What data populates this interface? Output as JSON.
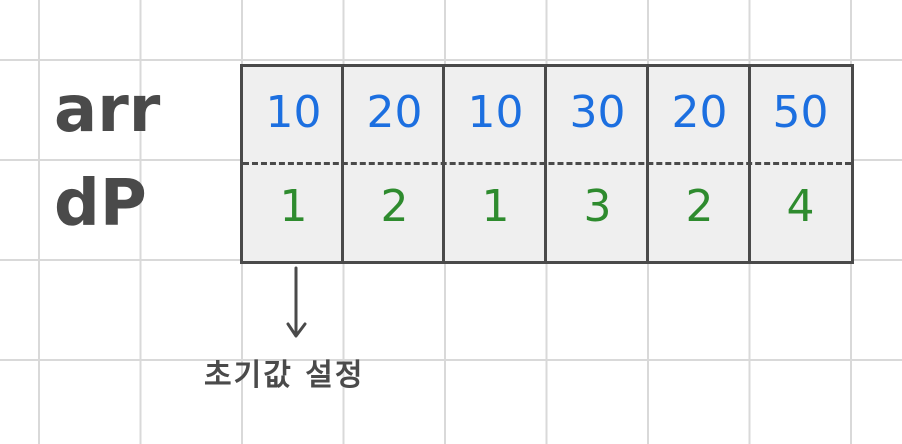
{
  "row_labels": {
    "arr": "arr",
    "dp": "dP"
  },
  "arr_values": [
    "10",
    "20",
    "10",
    "30",
    "20",
    "50"
  ],
  "dp_values": [
    "1",
    "2",
    "1",
    "3",
    "2",
    "4"
  ],
  "annotation": {
    "text": "초기값 설정",
    "icon": "down-arrow-icon"
  },
  "colors": {
    "arr_text": "#1c6fe0",
    "dp_text": "#2e8b2e",
    "label_text": "#4a4a4a",
    "cell_fill": "#efefef",
    "grid_line": "#d9d9d9"
  }
}
